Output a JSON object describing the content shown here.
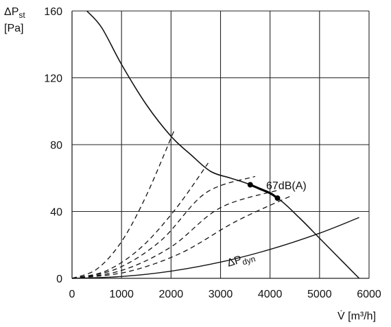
{
  "chart_data": {
    "type": "line",
    "y_axis": {
      "label_main": "ΔP",
      "label_sub": "st",
      "unit": "[Pa]",
      "ticks": [
        0,
        40,
        80,
        120,
        160
      ],
      "range": [
        0,
        160
      ]
    },
    "x_axis": {
      "label": "V̇ [m³/h]",
      "ticks": [
        0,
        1000,
        2000,
        3000,
        4000,
        5000,
        6000
      ],
      "range": [
        0,
        6000
      ]
    },
    "grid": true,
    "series": [
      {
        "style": "solid",
        "points": [
          [
            300,
            160
          ],
          [
            600,
            150
          ],
          [
            1000,
            128
          ],
          [
            1500,
            104
          ],
          [
            2000,
            85
          ],
          [
            2400,
            74
          ],
          [
            2800,
            64
          ],
          [
            3200,
            60
          ],
          [
            3600,
            56
          ],
          [
            4150,
            48
          ],
          [
            4600,
            36
          ],
          [
            5000,
            24
          ],
          [
            5400,
            12
          ],
          [
            5800,
            0
          ]
        ]
      },
      {
        "style": "bold",
        "points": [
          [
            3600,
            56
          ],
          [
            3800,
            53.5
          ],
          [
            4000,
            51
          ],
          [
            4150,
            48
          ]
        ]
      },
      {
        "name": "ΔPdyn",
        "style": "solid-thin",
        "points": [
          [
            0,
            0
          ],
          [
            1000,
            1.1
          ],
          [
            2000,
            4.3
          ],
          [
            3000,
            9.7
          ],
          [
            4000,
            17.3
          ],
          [
            5000,
            27
          ],
          [
            5800,
            36.4
          ]
        ]
      },
      {
        "style": "dashed",
        "points": [
          [
            0,
            0
          ],
          [
            500,
            5.5
          ],
          [
            1000,
            22
          ],
          [
            1500,
            49.5
          ],
          [
            2070,
            89
          ]
        ]
      },
      {
        "style": "dashed",
        "points": [
          [
            0,
            0
          ],
          [
            700,
            4.6
          ],
          [
            1400,
            18.6
          ],
          [
            2100,
            41.8
          ],
          [
            2750,
            69
          ]
        ]
      },
      {
        "style": "dashed",
        "points": [
          [
            0,
            0
          ],
          [
            900,
            5.7
          ],
          [
            1800,
            22.7
          ],
          [
            2700,
            51.1
          ],
          [
            3700,
            61
          ]
        ]
      },
      {
        "style": "dashed",
        "points": [
          [
            0,
            0
          ],
          [
            1000,
            4.7
          ],
          [
            2000,
            18.8
          ],
          [
            3000,
            42.3
          ],
          [
            4200,
            53
          ]
        ]
      },
      {
        "style": "dashed",
        "points": [
          [
            0,
            0
          ],
          [
            1100,
            3.8
          ],
          [
            2200,
            15.1
          ],
          [
            3300,
            33.9
          ],
          [
            4400,
            49
          ]
        ]
      }
    ],
    "annotations": [
      {
        "text": "67dB(A)"
      },
      {
        "text_main": "ΔP",
        "text_sub": "dyn"
      }
    ],
    "operating_points": [
      [
        3600,
        56
      ],
      [
        4150,
        48
      ]
    ]
  }
}
